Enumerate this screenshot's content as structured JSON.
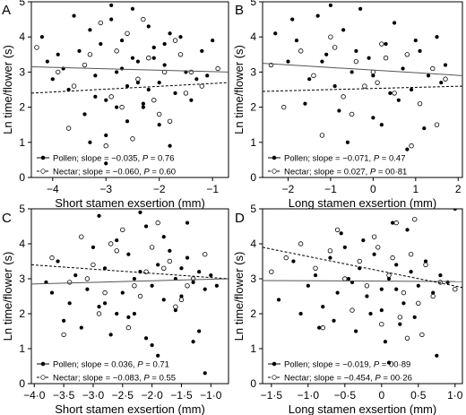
{
  "chart_data": [
    {
      "panel": "A",
      "type": "scatter",
      "xlabel": "Short stamen exsertion (mm)",
      "ylabel": "Ln time/flower (s)",
      "xlim": [
        -4.4,
        -0.7
      ],
      "ylim": [
        0,
        5
      ],
      "xticks": [
        -4,
        -3,
        -2,
        -1
      ],
      "xtick_labels": [
        "−4",
        "−3",
        "−2",
        "−1"
      ],
      "yticks": [
        0,
        1,
        2,
        3,
        4,
        5
      ],
      "ytick_labels": [
        "0",
        "1",
        "2",
        "3",
        "4",
        "5"
      ],
      "legend": [
        {
          "series": "Pollen",
          "prefix": "Pollen; slope = ",
          "slope": "−0.035",
          "p_label": "P",
          "p_value": "0.76"
        },
        {
          "series": "Nectar",
          "prefix": "Nectar; slope = ",
          "slope": "−0.060",
          "p_label": "P",
          "p_value": "0.60"
        }
      ],
      "series": [
        {
          "name": "Pollen",
          "marker": "filled",
          "line": "solid",
          "trend": [
            [
              -4.4,
              3.15
            ],
            [
              -0.7,
              3.0
            ]
          ],
          "x": [
            -4.2,
            -4.0,
            -3.9,
            -3.8,
            -3.7,
            -3.5,
            -3.3,
            -3.2,
            -3.1,
            -3.0,
            -2.9,
            -2.8,
            -2.7,
            -2.6,
            -2.5,
            -2.4,
            -2.3,
            -2.2,
            -2.1,
            -2.0,
            -1.9,
            -1.8,
            -1.7,
            -1.6,
            -1.5,
            -1.3,
            -1.2,
            -1.0,
            -3.4,
            -2.6,
            -2.3,
            -3.0,
            -2.0,
            -1.8,
            -3.6,
            -2.9,
            -2.5,
            -2.2,
            -1.4,
            -4.1,
            -3.2,
            -2.7,
            -1.9,
            -1.1,
            -3.0,
            -2.4,
            -2.1,
            -1.6,
            -3.3,
            -2.8
          ],
          "y": [
            4.0,
            2.8,
            3.5,
            3.1,
            2.5,
            3.6,
            4.2,
            2.9,
            3.8,
            2.2,
            4.5,
            3.0,
            3.9,
            2.6,
            4.8,
            3.3,
            2.1,
            4.3,
            3.7,
            2.7,
            3.2,
            4.1,
            2.4,
            3.5,
            3.0,
            2.8,
            3.6,
            3.9,
            1.8,
            1.6,
            2.0,
            1.2,
            1.5,
            0.9,
            4.6,
            4.9,
            3.4,
            2.5,
            2.2,
            3.3,
            2.3,
            3.1,
            3.8,
            2.9,
            0.4,
            2.7,
            3.4,
            4.0,
            1.0,
            2.0
          ]
        },
        {
          "name": "Nectar",
          "marker": "open",
          "line": "dashed",
          "trend": [
            [
              -4.4,
              2.4
            ],
            [
              -0.7,
              2.7
            ]
          ],
          "x": [
            -4.3,
            -3.9,
            -3.6,
            -3.4,
            -3.1,
            -2.9,
            -2.8,
            -2.6,
            -2.4,
            -2.2,
            -2.1,
            -1.9,
            -1.7,
            -1.5,
            -1.2,
            -0.9,
            -3.7,
            -3.0,
            -2.5,
            -2.0,
            -1.6,
            -3.3,
            -2.7,
            -2.3,
            -1.8,
            -1.4
          ],
          "y": [
            3.7,
            3.0,
            2.6,
            3.2,
            4.4,
            2.3,
            3.6,
            4.1,
            2.8,
            3.4,
            2.2,
            3.0,
            3.9,
            2.4,
            2.6,
            3.1,
            1.4,
            0.9,
            1.1,
            1.8,
            3.5,
            3.5,
            2.0,
            4.5,
            1.6,
            3.0
          ]
        }
      ]
    },
    {
      "panel": "B",
      "type": "scatter",
      "xlabel": "Long stamen exsertion (mm)",
      "ylabel": "Ln time/flower (s)",
      "xlim": [
        -2.6,
        2.1
      ],
      "ylim": [
        0,
        5
      ],
      "xticks": [
        -2,
        -1,
        0,
        1,
        2
      ],
      "xtick_labels": [
        "−2",
        "−1",
        "0",
        "1",
        "2"
      ],
      "yticks": [
        0,
        1,
        2,
        3,
        4,
        5
      ],
      "ytick_labels": [
        "0",
        "1",
        "2",
        "3",
        "4",
        "5"
      ],
      "legend": [
        {
          "series": "Pollen",
          "prefix": "Pollen; slope = ",
          "slope": "−0.071",
          "p_label": "P",
          "p_value": "0.47"
        },
        {
          "series": "Nectar",
          "prefix": "Nectar; slope = ",
          "slope": "0.027",
          "p_label": "P",
          "p_value": "00·81"
        }
      ],
      "series": [
        {
          "name": "Pollen",
          "marker": "filled",
          "line": "solid",
          "trend": [
            [
              -2.6,
              3.25
            ],
            [
              2.1,
              2.9
            ]
          ],
          "x": [
            -2.3,
            -2.0,
            -1.8,
            -1.5,
            -1.3,
            -1.1,
            -0.9,
            -0.7,
            -0.5,
            -0.3,
            -0.1,
            0.1,
            0.3,
            0.5,
            0.7,
            0.9,
            1.1,
            1.3,
            1.5,
            1.7,
            -1.6,
            -0.8,
            0.0,
            0.6,
            1.2,
            -1.9,
            -1.0,
            -0.4,
            0.4,
            1.0,
            1.6,
            -0.6,
            0.2,
            0.8,
            -1.2,
            0.0
          ],
          "y": [
            4.1,
            3.3,
            3.9,
            2.8,
            4.6,
            3.5,
            2.6,
            4.2,
            3.0,
            4.8,
            3.4,
            2.7,
            3.8,
            4.4,
            3.1,
            2.5,
            3.6,
            2.9,
            4.0,
            3.2,
            2.1,
            1.9,
            1.7,
            2.2,
            1.4,
            4.5,
            4.9,
            3.6,
            2.4,
            3.9,
            2.7,
            1.0,
            1.5,
            0.8,
            3.3,
            2.9
          ]
        },
        {
          "name": "Nectar",
          "marker": "open",
          "line": "dashed",
          "trend": [
            [
              -2.6,
              2.45
            ],
            [
              2.1,
              2.6
            ]
          ],
          "x": [
            -2.4,
            -2.1,
            -1.7,
            -1.4,
            -1.0,
            -0.7,
            -0.4,
            -0.2,
            0.0,
            0.2,
            0.5,
            0.8,
            1.1,
            1.4,
            1.7,
            -1.2,
            -0.5,
            0.3,
            0.9,
            1.5,
            -0.9,
            0.1,
            0.6
          ],
          "y": [
            3.2,
            2.0,
            3.6,
            2.9,
            4.0,
            2.3,
            3.3,
            2.6,
            3.0,
            3.8,
            2.4,
            3.5,
            2.1,
            3.1,
            2.8,
            1.2,
            1.8,
            3.4,
            0.9,
            1.5,
            3.7,
            2.7,
            -0.1
          ]
        }
      ]
    },
    {
      "panel": "C",
      "type": "scatter",
      "xlabel": "Short stamen exsertion (mm)",
      "ylabel": "Ln time/flower (s)",
      "xlim": [
        -4.05,
        -0.7
      ],
      "ylim": [
        0,
        5
      ],
      "xticks": [
        -4.0,
        -3.5,
        -3.0,
        -2.5,
        -2.0,
        -1.5,
        -1.0
      ],
      "xtick_labels": [
        "−4·0",
        "−3·5",
        "−3·0",
        "−2·5",
        "−2·0",
        "−1·5",
        "−1·0"
      ],
      "yticks": [
        0,
        1,
        2,
        3,
        4,
        5
      ],
      "ytick_labels": [
        "0",
        "1",
        "2",
        "3",
        "4",
        "5"
      ],
      "legend": [
        {
          "series": "Pollen",
          "prefix": "Pollen; slope = ",
          "slope": "0.036",
          "p_label": "P",
          "p_value": "0.71"
        },
        {
          "series": "Nectar",
          "prefix": "Nectar; slope = ",
          "slope": "−0.083",
          "p_label": "P",
          "p_value": "0.55"
        }
      ],
      "series": [
        {
          "name": "Pollen",
          "marker": "filled",
          "line": "solid",
          "trend": [
            [
              -4.05,
              2.85
            ],
            [
              -0.7,
              3.0
            ]
          ],
          "x": [
            -3.8,
            -3.6,
            -3.4,
            -3.3,
            -3.1,
            -3.0,
            -2.9,
            -2.8,
            -2.6,
            -2.5,
            -2.4,
            -2.3,
            -2.2,
            -2.1,
            -2.0,
            -1.9,
            -1.8,
            -1.7,
            -1.6,
            -1.5,
            -1.4,
            -1.3,
            -1.2,
            -1.1,
            -1.0,
            -0.9,
            -3.5,
            -3.2,
            -2.7,
            -2.4,
            -2.1,
            -1.9,
            -1.6,
            -1.3,
            -2.9,
            -2.2,
            -1.8,
            -1.4,
            -2.6,
            -2.0,
            -1.1,
            -3.7,
            -2.3,
            -1.5,
            -1.2,
            -2.8
          ],
          "y": [
            2.9,
            3.5,
            2.3,
            3.1,
            2.7,
            3.9,
            2.2,
            3.3,
            4.1,
            2.6,
            3.7,
            2.0,
            3.2,
            4.5,
            2.8,
            3.4,
            2.4,
            3.8,
            3.0,
            2.5,
            3.6,
            2.9,
            3.2,
            2.7,
            3.1,
            2.8,
            1.8,
            1.6,
            1.4,
            1.9,
            1.3,
            0.8,
            2.1,
            1.2,
            4.8,
            4.9,
            4.2,
            4.6,
            2.0,
            1.1,
            0.3,
            2.6,
            3.0,
            3.3,
            1.5,
            2.3
          ]
        },
        {
          "name": "Nectar",
          "marker": "open",
          "line": "dashed",
          "trend": [
            [
              -4.05,
              3.4
            ],
            [
              -0.7,
              3.0
            ]
          ],
          "x": [
            -3.7,
            -3.4,
            -3.2,
            -3.0,
            -2.8,
            -2.6,
            -2.5,
            -2.3,
            -2.1,
            -1.9,
            -1.7,
            -1.5,
            -1.3,
            -1.1,
            -3.5,
            -2.9,
            -2.4,
            -2.0,
            -1.6,
            -3.1,
            -2.7,
            -2.2,
            -1.8,
            -1.4
          ],
          "y": [
            3.6,
            2.9,
            4.2,
            3.4,
            2.6,
            3.8,
            4.4,
            2.8,
            3.2,
            4.6,
            3.5,
            2.4,
            3.0,
            3.7,
            1.4,
            2.0,
            1.6,
            3.9,
            2.2,
            3.0,
            4.0,
            2.5,
            3.3,
            2.8
          ]
        }
      ]
    },
    {
      "panel": "D",
      "type": "scatter",
      "xlabel": "Long stamen exsertion (mm)",
      "ylabel": "Ln time/flower (s)",
      "xlim": [
        -1.62,
        1.1
      ],
      "ylim": [
        0,
        5
      ],
      "xticks": [
        -1.5,
        -1.0,
        -0.5,
        0,
        0.5,
        1.0
      ],
      "xtick_labels": [
        "−1·5",
        "−1·0",
        "−0·5",
        "0",
        "0·5",
        "1·0"
      ],
      "yticks": [
        0,
        1,
        2,
        3,
        4,
        5
      ],
      "ytick_labels": [
        "0",
        "1",
        "2",
        "3",
        "4",
        "5"
      ],
      "legend": [
        {
          "series": "Pollen",
          "prefix": "Pollen; slope = ",
          "slope": "−0.019",
          "p_label": "P",
          "p_value": "00·89"
        },
        {
          "series": "Nectar",
          "prefix": "Nectar; slope = ",
          "slope": "−0.454",
          "p_label": "P",
          "p_value": "00·26"
        }
      ],
      "series": [
        {
          "name": "Pollen",
          "marker": "filled",
          "line": "solid",
          "trend": [
            [
              -1.62,
              2.95
            ],
            [
              1.1,
              2.92
            ]
          ],
          "x": [
            -1.4,
            -1.2,
            -1.0,
            -0.9,
            -0.8,
            -0.7,
            -0.6,
            -0.5,
            -0.4,
            -0.3,
            -0.2,
            -0.1,
            0.0,
            0.1,
            0.2,
            0.3,
            0.4,
            0.5,
            0.6,
            0.7,
            0.8,
            0.9,
            1.0,
            -0.65,
            -0.35,
            -0.15,
            0.05,
            0.25,
            0.45,
            -0.55,
            -0.25,
            0.15,
            0.35,
            -0.85,
            0.55,
            0.0,
            -0.45,
            0.2,
            0.75,
            -1.1,
            0.1
          ],
          "y": [
            2.4,
            3.5,
            2.8,
            3.1,
            2.2,
            3.6,
            2.6,
            3.9,
            2.9,
            3.3,
            2.5,
            3.7,
            2.7,
            3.0,
            3.4,
            2.3,
            3.2,
            2.8,
            3.5,
            2.6,
            3.1,
            2.9,
            5.0,
            1.8,
            1.5,
            2.0,
            1.2,
            1.7,
            1.9,
            4.3,
            4.1,
            4.6,
            4.4,
            1.6,
            1.4,
            2.1,
            3.0,
            2.7,
            0.8,
            2.0,
            0.6
          ]
        },
        {
          "name": "Nectar",
          "marker": "open",
          "line": "dashed",
          "trend": [
            [
              -1.62,
              3.9
            ],
            [
              1.1,
              2.75
            ]
          ],
          "x": [
            -1.5,
            -1.3,
            -1.1,
            -0.9,
            -0.7,
            -0.5,
            -0.3,
            -0.1,
            0.1,
            0.2,
            0.3,
            0.4,
            0.5,
            0.6,
            0.8,
            1.0,
            -0.8,
            -0.4,
            0.0,
            0.35,
            0.7,
            -0.6,
            -0.2,
            0.25,
            0.45,
            -0.05,
            0.15,
            0.55
          ],
          "y": [
            3.2,
            3.6,
            4.0,
            3.3,
            3.8,
            3.0,
            3.5,
            4.2,
            3.1,
            4.6,
            2.6,
            3.7,
            2.3,
            3.4,
            2.9,
            2.7,
            1.6,
            2.1,
            1.7,
            1.3,
            2.5,
            4.4,
            2.8,
            1.9,
            4.7,
            3.9,
            3.6,
            1.4
          ]
        }
      ]
    }
  ]
}
